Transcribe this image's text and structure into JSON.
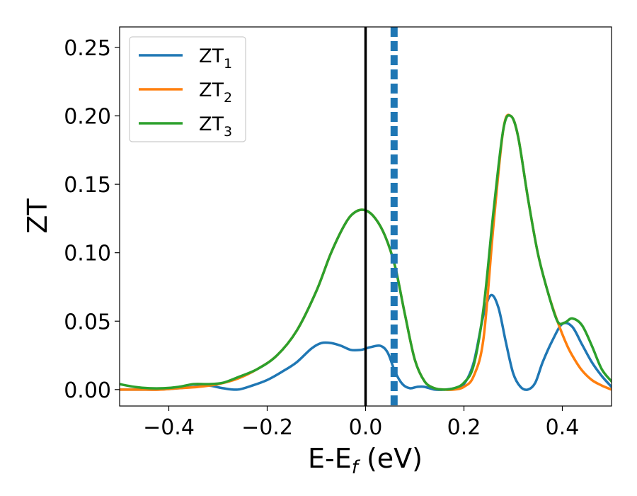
{
  "chart_data": {
    "type": "line",
    "xlabel": {
      "main": "E-E",
      "sub": "f",
      "tail": " (eV)"
    },
    "ylabel": "ZT",
    "xlim": [
      -0.5,
      0.5
    ],
    "ylim": [
      -0.012,
      0.265
    ],
    "xticks": [
      -0.4,
      -0.2,
      0.0,
      0.2,
      0.4
    ],
    "xtick_labels": [
      "−0.4",
      "−0.2",
      "0.0",
      "0.2",
      "0.4"
    ],
    "yticks": [
      0.0,
      0.05,
      0.1,
      0.15,
      0.2,
      0.25
    ],
    "ytick_labels": [
      "0.00",
      "0.05",
      "0.10",
      "0.15",
      "0.20",
      "0.25"
    ],
    "grid": false,
    "legend_position": "top-left",
    "vlines": [
      {
        "x": 0.0,
        "style": "solid",
        "color": "#000000"
      },
      {
        "x": 0.058,
        "style": "dashed",
        "color": "#1f77b4"
      }
    ],
    "series": [
      {
        "name": "ZT",
        "sub": "1",
        "color": "#1f77b4",
        "x": [
          -0.5,
          -0.46,
          -0.42,
          -0.38,
          -0.35,
          -0.32,
          -0.29,
          -0.26,
          -0.23,
          -0.2,
          -0.17,
          -0.14,
          -0.11,
          -0.09,
          -0.07,
          -0.05,
          -0.03,
          -0.01,
          0.0,
          0.01,
          0.03,
          0.045,
          0.06,
          0.075,
          0.09,
          0.105,
          0.12,
          0.14,
          0.16,
          0.18,
          0.2,
          0.22,
          0.24,
          0.255,
          0.27,
          0.285,
          0.3,
          0.315,
          0.33,
          0.345,
          0.36,
          0.38,
          0.4,
          0.42,
          0.44,
          0.46,
          0.48,
          0.5
        ],
        "y": [
          0.0,
          0.0,
          0.0,
          0.001,
          0.002,
          0.003,
          0.001,
          0.0,
          0.003,
          0.007,
          0.013,
          0.02,
          0.03,
          0.034,
          0.034,
          0.032,
          0.029,
          0.029,
          0.03,
          0.031,
          0.032,
          0.027,
          0.013,
          0.004,
          0.001,
          0.002,
          0.002,
          0.0,
          0.0,
          0.001,
          0.004,
          0.02,
          0.055,
          0.069,
          0.06,
          0.035,
          0.012,
          0.002,
          0.0,
          0.005,
          0.02,
          0.036,
          0.048,
          0.046,
          0.033,
          0.02,
          0.01,
          0.002
        ]
      },
      {
        "name": "ZT",
        "sub": "2",
        "color": "#ff7f0e",
        "x": [
          -0.5,
          -0.46,
          -0.42,
          -0.38,
          -0.34,
          -0.3,
          -0.26,
          -0.22,
          -0.18,
          -0.14,
          -0.1,
          -0.07,
          -0.04,
          -0.02,
          0.0,
          0.02,
          0.04,
          0.06,
          0.08,
          0.1,
          0.12,
          0.14,
          0.16,
          0.18,
          0.2,
          0.22,
          0.24,
          0.26,
          0.28,
          0.295,
          0.31,
          0.33,
          0.35,
          0.37,
          0.39,
          0.41,
          0.425,
          0.44,
          0.46,
          0.48,
          0.5
        ],
        "y": [
          0.0,
          0.0,
          0.0,
          0.001,
          0.002,
          0.004,
          0.008,
          0.015,
          0.025,
          0.043,
          0.072,
          0.1,
          0.122,
          0.13,
          0.131,
          0.125,
          0.112,
          0.09,
          0.055,
          0.022,
          0.006,
          0.001,
          0.0,
          0.0,
          0.002,
          0.01,
          0.038,
          0.12,
          0.19,
          0.2,
          0.185,
          0.14,
          0.1,
          0.072,
          0.05,
          0.032,
          0.022,
          0.014,
          0.007,
          0.003,
          0.0
        ]
      },
      {
        "name": "ZT",
        "sub": "3",
        "color": "#2ca02c",
        "x": [
          -0.5,
          -0.47,
          -0.44,
          -0.41,
          -0.38,
          -0.35,
          -0.32,
          -0.29,
          -0.26,
          -0.22,
          -0.18,
          -0.14,
          -0.1,
          -0.07,
          -0.04,
          -0.02,
          0.0,
          0.02,
          0.04,
          0.06,
          0.08,
          0.1,
          0.12,
          0.14,
          0.16,
          0.18,
          0.2,
          0.22,
          0.24,
          0.26,
          0.28,
          0.295,
          0.31,
          0.33,
          0.35,
          0.37,
          0.39,
          0.405,
          0.42,
          0.44,
          0.46,
          0.48,
          0.5
        ],
        "y": [
          0.004,
          0.002,
          0.001,
          0.001,
          0.002,
          0.004,
          0.004,
          0.005,
          0.009,
          0.015,
          0.025,
          0.043,
          0.072,
          0.1,
          0.122,
          0.13,
          0.131,
          0.125,
          0.112,
          0.09,
          0.055,
          0.022,
          0.006,
          0.001,
          0.0,
          0.001,
          0.005,
          0.018,
          0.06,
          0.13,
          0.19,
          0.2,
          0.185,
          0.14,
          0.1,
          0.072,
          0.05,
          0.049,
          0.052,
          0.047,
          0.032,
          0.015,
          0.006
        ]
      }
    ]
  }
}
